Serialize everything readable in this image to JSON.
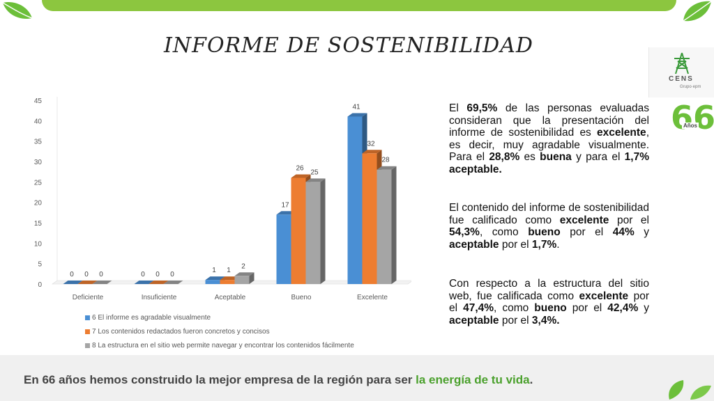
{
  "title": "INFORME DE SOSTENIBILIDAD",
  "chart_data": {
    "type": "bar",
    "categories": [
      "Deficiente",
      "Insuficiente",
      "Aceptable",
      "Bueno",
      "Excelente"
    ],
    "series": [
      {
        "name": "6 El informe es agradable visualmente",
        "values": [
          0,
          0,
          1,
          17,
          41
        ],
        "color": "#4a8fd4"
      },
      {
        "name": "7 Los contenidos redactados fueron concretos y concisos",
        "values": [
          0,
          0,
          1,
          26,
          32
        ],
        "color": "#ed7d31"
      },
      {
        "name": "8 La estructura en el sitio web permite navegar y encontrar los contenidos fácilmente",
        "values": [
          0,
          0,
          2,
          25,
          28
        ],
        "color": "#a5a5a5"
      }
    ],
    "ylim": [
      0,
      45
    ],
    "yticks": [
      0,
      5,
      10,
      15,
      20,
      25,
      30,
      35,
      40,
      45
    ],
    "grid": false,
    "legend": "bottom"
  },
  "paragraph1": {
    "t1": "El ",
    "b1": "69,5%",
    "t2": " de las personas evaluadas consideran que la presentación del informe de sostenibilidad es ",
    "b2": "excelente",
    "t3": ", es decir, muy agradable visualmente. Para el ",
    "b3": "28,8%",
    "t4": " es ",
    "b4": "buena",
    "t5": " y para el ",
    "b5": "1,7% aceptable."
  },
  "paragraph2": {
    "t1": "El contenido del informe de sostenibilidad fue calificado como ",
    "b1": "excelente",
    "t2": " por el ",
    "b2": "54,3%",
    "t3": ", como ",
    "b3": "bueno",
    "t4": " por el ",
    "b4": "44%",
    "t5": " y ",
    "b5": "aceptable",
    "t6": " por el ",
    "b6": "1,7%",
    "t7": "."
  },
  "paragraph3": {
    "t1": "Con respecto a la estructura del sitio web, fue calificada como ",
    "b1": "excelente",
    "t2": " por el ",
    "b2": "47,4%",
    "t3": ", como ",
    "b3": "bueno",
    "t4": " por el ",
    "b4": "42,4%",
    "t5": " y ",
    "b5": "aceptable",
    "t6": " por el ",
    "b6": "3,4%."
  },
  "logo": {
    "name": "CENS",
    "group": "Grupo·epm",
    "anniversary_number": "66",
    "anniversary_label": "Años"
  },
  "tagline": {
    "prefix": "En 66 años hemos construido la mejor empresa de la región para ser ",
    "highlight": "la energía de tu vida",
    "suffix": "."
  }
}
